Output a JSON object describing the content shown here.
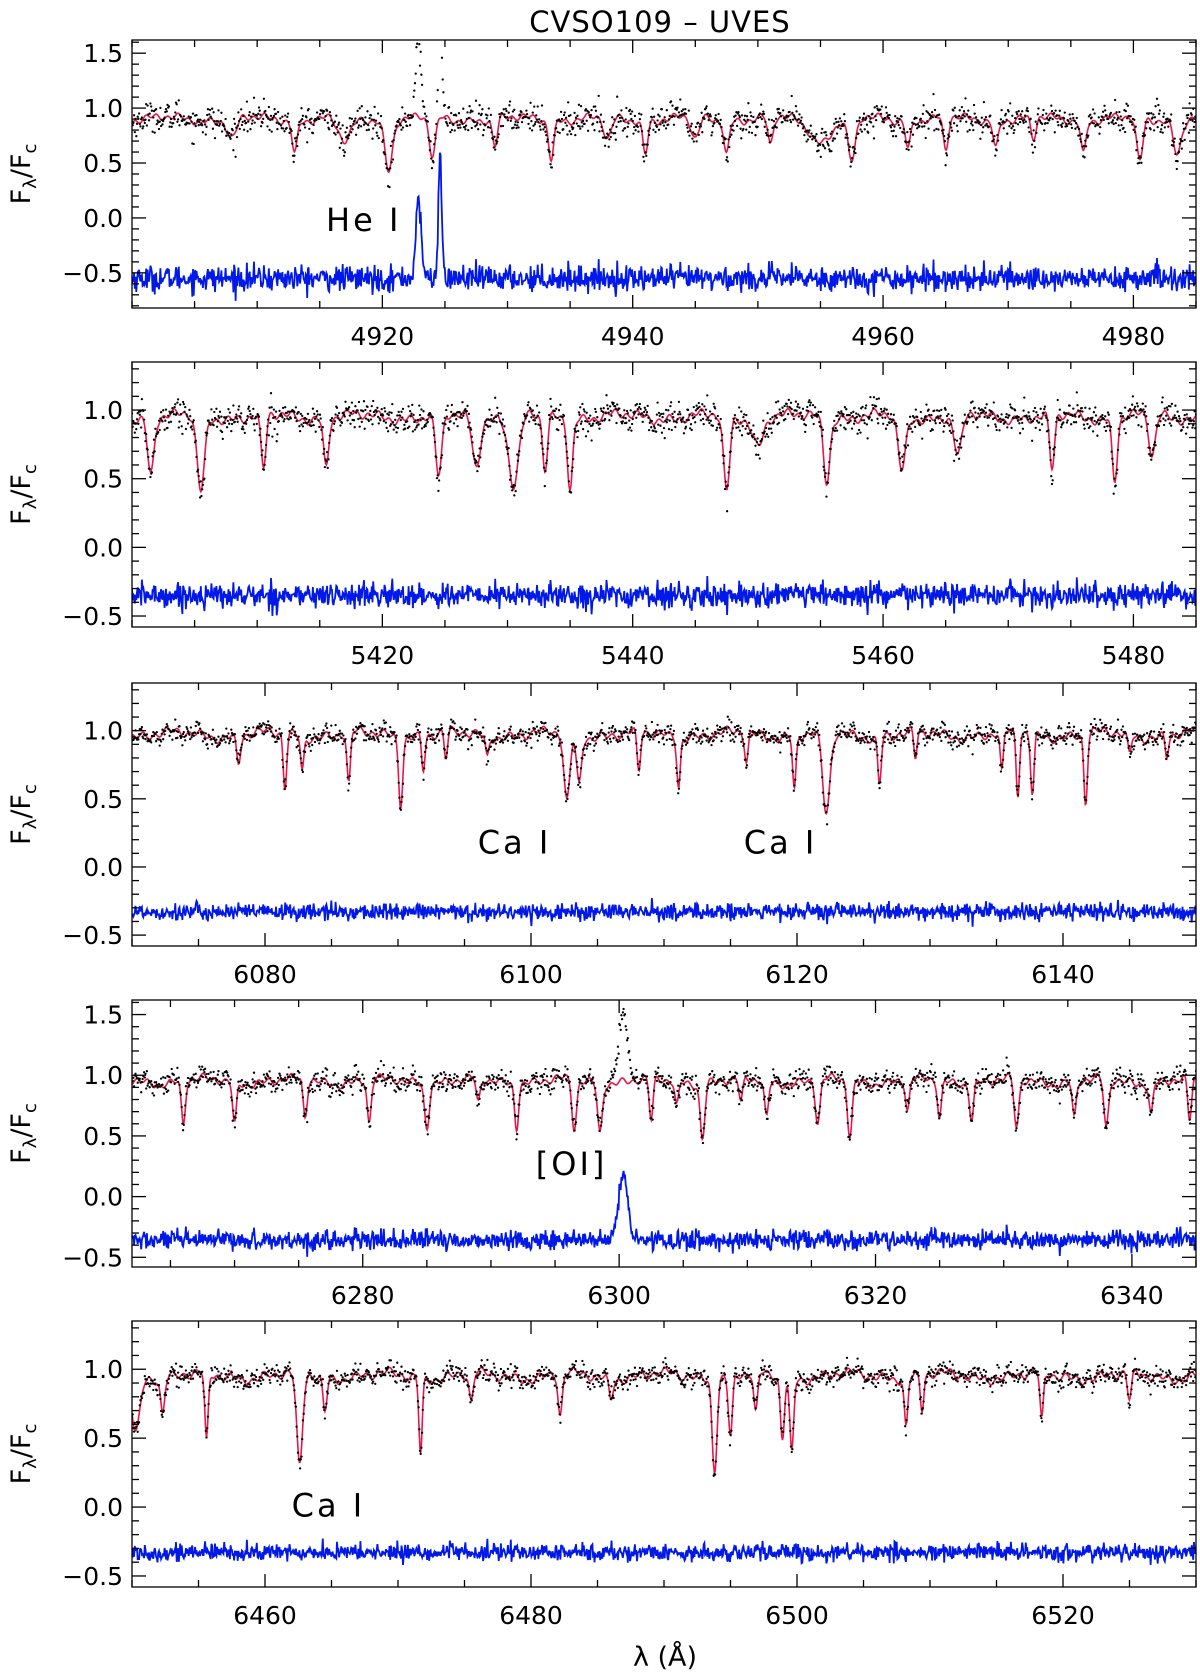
{
  "figure": {
    "title": "CVSO109 – UVES",
    "xlabel": "λ (Å)",
    "ylabel_main": "F",
    "ylabel_sub1": "λ",
    "ylabel_sep": "/F",
    "ylabel_sub2": "c"
  },
  "colors": {
    "observed": "#000000",
    "model": "#e8174a",
    "residual": "#0019e8"
  },
  "chart_data": [
    {
      "type": "line",
      "panel": 1,
      "xlim": [
        4900,
        4985
      ],
      "ylim": [
        -0.82,
        1.62
      ],
      "xticks": [
        4920,
        4940,
        4960,
        4980
      ],
      "yticks": [
        -0.5,
        0.0,
        0.5,
        1.0,
        1.5
      ],
      "continuum": 0.9,
      "residual_offset": -0.55,
      "noise": 0.065,
      "absorption_lines": [
        [
          4908,
          0.18,
          0.35
        ],
        [
          4913,
          0.3,
          0.2
        ],
        [
          4917,
          0.22,
          0.5
        ],
        [
          4920.5,
          0.45,
          0.3
        ],
        [
          4924,
          0.35,
          0.25
        ],
        [
          4929,
          0.25,
          0.2
        ],
        [
          4933.5,
          0.35,
          0.2
        ],
        [
          4938,
          0.2,
          0.3
        ],
        [
          4941,
          0.3,
          0.2
        ],
        [
          4945,
          0.2,
          0.3
        ],
        [
          4947.5,
          0.3,
          0.2
        ],
        [
          4951,
          0.25,
          0.2
        ],
        [
          4955,
          0.2,
          0.8
        ],
        [
          4957.5,
          0.4,
          0.3
        ],
        [
          4962,
          0.25,
          0.2
        ],
        [
          4965,
          0.3,
          0.2
        ],
        [
          4969,
          0.25,
          0.2
        ],
        [
          4972,
          0.2,
          0.2
        ],
        [
          4976,
          0.3,
          0.2
        ],
        [
          4980.5,
          0.4,
          0.25
        ],
        [
          4983.5,
          0.3,
          0.3
        ]
      ],
      "emission_lines": [
        [
          4922.9,
          0.68,
          0.22
        ],
        [
          4924.6,
          1.13,
          0.13
        ]
      ],
      "annotations": [
        {
          "text": "He I",
          "x": 4915.5,
          "y": -0.12
        }
      ]
    },
    {
      "type": "line",
      "panel": 2,
      "xlim": [
        5400,
        5485
      ],
      "ylim": [
        -0.58,
        1.35
      ],
      "xticks": [
        5420,
        5440,
        5460,
        5480
      ],
      "yticks": [
        -0.5,
        0.0,
        0.5,
        1.0
      ],
      "continuum": 0.95,
      "residual_offset": -0.35,
      "noise": 0.05,
      "absorption_lines": [
        [
          5401.5,
          0.4,
          0.25
        ],
        [
          5405.5,
          0.55,
          0.3
        ],
        [
          5410.5,
          0.4,
          0.2
        ],
        [
          5415.5,
          0.35,
          0.2
        ],
        [
          5424.5,
          0.45,
          0.25
        ],
        [
          5427.5,
          0.35,
          0.3
        ],
        [
          5430.5,
          0.5,
          0.4
        ],
        [
          5433,
          0.4,
          0.2
        ],
        [
          5435,
          0.5,
          0.2
        ],
        [
          5447.5,
          0.55,
          0.25
        ],
        [
          5450,
          0.2,
          0.4
        ],
        [
          5455.5,
          0.45,
          0.25
        ],
        [
          5461.5,
          0.4,
          0.3
        ],
        [
          5466,
          0.3,
          0.3
        ],
        [
          5473.5,
          0.4,
          0.2
        ],
        [
          5478.5,
          0.45,
          0.2
        ],
        [
          5481.5,
          0.3,
          0.25
        ]
      ],
      "emission_lines": [],
      "annotations": []
    },
    {
      "type": "line",
      "panel": 3,
      "xlim": [
        6070,
        6150
      ],
      "ylim": [
        -0.58,
        1.35
      ],
      "xticks": [
        6080,
        6100,
        6120,
        6140
      ],
      "yticks": [
        -0.5,
        0.0,
        0.5,
        1.0
      ],
      "continuum": 0.97,
      "residual_offset": -0.33,
      "noise": 0.035,
      "absorption_lines": [
        [
          6078,
          0.2,
          0.15
        ],
        [
          6081.5,
          0.4,
          0.13
        ],
        [
          6082.8,
          0.25,
          0.12
        ],
        [
          6086.3,
          0.38,
          0.13
        ],
        [
          6090.2,
          0.48,
          0.15
        ],
        [
          6091.9,
          0.25,
          0.12
        ],
        [
          6093.6,
          0.2,
          0.12
        ],
        [
          6096.7,
          0.15,
          0.12
        ],
        [
          6102.7,
          0.5,
          0.22
        ],
        [
          6103.6,
          0.35,
          0.18
        ],
        [
          6108.1,
          0.3,
          0.13
        ],
        [
          6111.1,
          0.35,
          0.13
        ],
        [
          6116.2,
          0.2,
          0.13
        ],
        [
          6119.8,
          0.4,
          0.13
        ],
        [
          6122.2,
          0.6,
          0.28
        ],
        [
          6126.2,
          0.35,
          0.13
        ],
        [
          6128.9,
          0.2,
          0.12
        ],
        [
          6135.4,
          0.3,
          0.12
        ],
        [
          6136.6,
          0.45,
          0.12
        ],
        [
          6137.7,
          0.45,
          0.13
        ],
        [
          6141.7,
          0.5,
          0.13
        ],
        [
          6145,
          0.15,
          0.13
        ],
        [
          6147.8,
          0.15,
          0.12
        ]
      ],
      "emission_lines": [],
      "annotations": [
        {
          "text": "Ca I",
          "x": 6096,
          "y": 0.1
        },
        {
          "text": "Ca I",
          "x": 6116,
          "y": 0.1
        }
      ]
    },
    {
      "type": "line",
      "panel": 4,
      "xlim": [
        6262,
        6345
      ],
      "ylim": [
        -0.58,
        1.62
      ],
      "xticks": [
        6280,
        6300,
        6320,
        6340
      ],
      "yticks": [
        -0.5,
        0.0,
        0.5,
        1.0,
        1.5
      ],
      "continuum": 0.95,
      "residual_offset": -0.36,
      "noise": 0.045,
      "absorption_lines": [
        [
          6266,
          0.35,
          0.15
        ],
        [
          6270,
          0.35,
          0.15
        ],
        [
          6275.5,
          0.3,
          0.15
        ],
        [
          6280.5,
          0.35,
          0.15
        ],
        [
          6285,
          0.35,
          0.18
        ],
        [
          6289,
          0.2,
          0.15
        ],
        [
          6292,
          0.35,
          0.15
        ],
        [
          6296.5,
          0.4,
          0.18
        ],
        [
          6298.5,
          0.4,
          0.18
        ],
        [
          6302.5,
          0.35,
          0.15
        ],
        [
          6304.5,
          0.2,
          0.15
        ],
        [
          6306.5,
          0.45,
          0.18
        ],
        [
          6309.5,
          0.2,
          0.15
        ],
        [
          6311.5,
          0.3,
          0.15
        ],
        [
          6315.5,
          0.35,
          0.18
        ],
        [
          6318,
          0.45,
          0.18
        ],
        [
          6322.5,
          0.25,
          0.15
        ],
        [
          6325,
          0.3,
          0.15
        ],
        [
          6327.5,
          0.3,
          0.15
        ],
        [
          6331,
          0.4,
          0.18
        ],
        [
          6335.5,
          0.3,
          0.15
        ],
        [
          6338,
          0.4,
          0.18
        ],
        [
          6341.5,
          0.25,
          0.15
        ],
        [
          6344.5,
          0.35,
          0.15
        ]
      ],
      "emission_lines": [
        [
          6300.3,
          0.56,
          0.35
        ]
      ],
      "annotations": [
        {
          "text": "[OI]",
          "x": 6293.5,
          "y": 0.18
        }
      ]
    },
    {
      "type": "line",
      "panel": 5,
      "xlim": [
        6450,
        6530
      ],
      "ylim": [
        -0.58,
        1.35
      ],
      "xticks": [
        6460,
        6480,
        6500,
        6520
      ],
      "yticks": [
        -0.5,
        0.0,
        0.5,
        1.0
      ],
      "continuum": 0.95,
      "residual_offset": -0.33,
      "noise": 0.035,
      "absorption_lines": [
        [
          6450.3,
          0.4,
          0.3
        ],
        [
          6452.3,
          0.25,
          0.15
        ],
        [
          6455.6,
          0.5,
          0.13
        ],
        [
          6462.6,
          0.68,
          0.22
        ],
        [
          6464.5,
          0.25,
          0.15
        ],
        [
          6471.7,
          0.55,
          0.13
        ],
        [
          6475.5,
          0.2,
          0.15
        ],
        [
          6482.2,
          0.3,
          0.15
        ],
        [
          6486,
          0.15,
          0.15
        ],
        [
          6493.8,
          0.65,
          0.18
        ],
        [
          6495,
          0.45,
          0.15
        ],
        [
          6496.9,
          0.3,
          0.15
        ],
        [
          6498.9,
          0.45,
          0.15
        ],
        [
          6499.6,
          0.55,
          0.15
        ],
        [
          6508.2,
          0.35,
          0.13
        ],
        [
          6509.4,
          0.25,
          0.13
        ],
        [
          6518.4,
          0.35,
          0.13
        ],
        [
          6525,
          0.2,
          0.15
        ]
      ],
      "emission_lines": [],
      "annotations": [
        {
          "text": "Ca I",
          "x": 6462,
          "y": -0.07
        }
      ]
    }
  ]
}
